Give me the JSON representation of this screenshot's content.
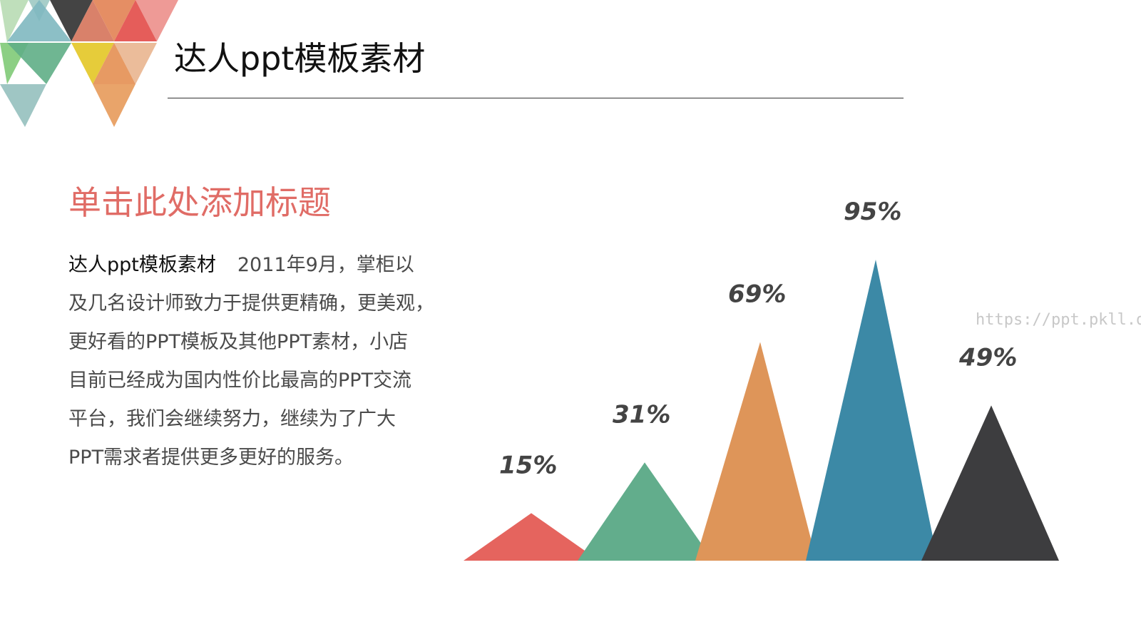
{
  "header": {
    "title": "达人ppt模板素材"
  },
  "content": {
    "section_title": "单击此处添加标题",
    "section_title_color": "#e06c66",
    "body_lead": "达人ppt模板素材",
    "body_lines": [
      "2011年9月，掌柜以",
      "及几名设计师致力于提供更精确，更美观，",
      "更好看的PPT模板及其他PPT素材，小店",
      "目前已经成为国内性价比最高的PPT交流",
      "平台，我们会继续努力，继续为了广大",
      "PPT需求者提供更多更好的服务。"
    ]
  },
  "watermark": "https://ppt.pkll.de",
  "chart_data": {
    "type": "bar",
    "style": "triangle-peaks",
    "categories": [
      "",
      "",
      "",
      "",
      ""
    ],
    "values": [
      15,
      31,
      69,
      95,
      49
    ],
    "data_labels": [
      "15%",
      "31%",
      "69%",
      "95%",
      "49%"
    ],
    "colors": [
      "#e5645e",
      "#62ad8c",
      "#de9559",
      "#3c89a6",
      "#3d3d3f"
    ],
    "ylim": [
      0,
      100
    ],
    "title": "",
    "xlabel": "",
    "ylabel": "",
    "grid": false
  }
}
